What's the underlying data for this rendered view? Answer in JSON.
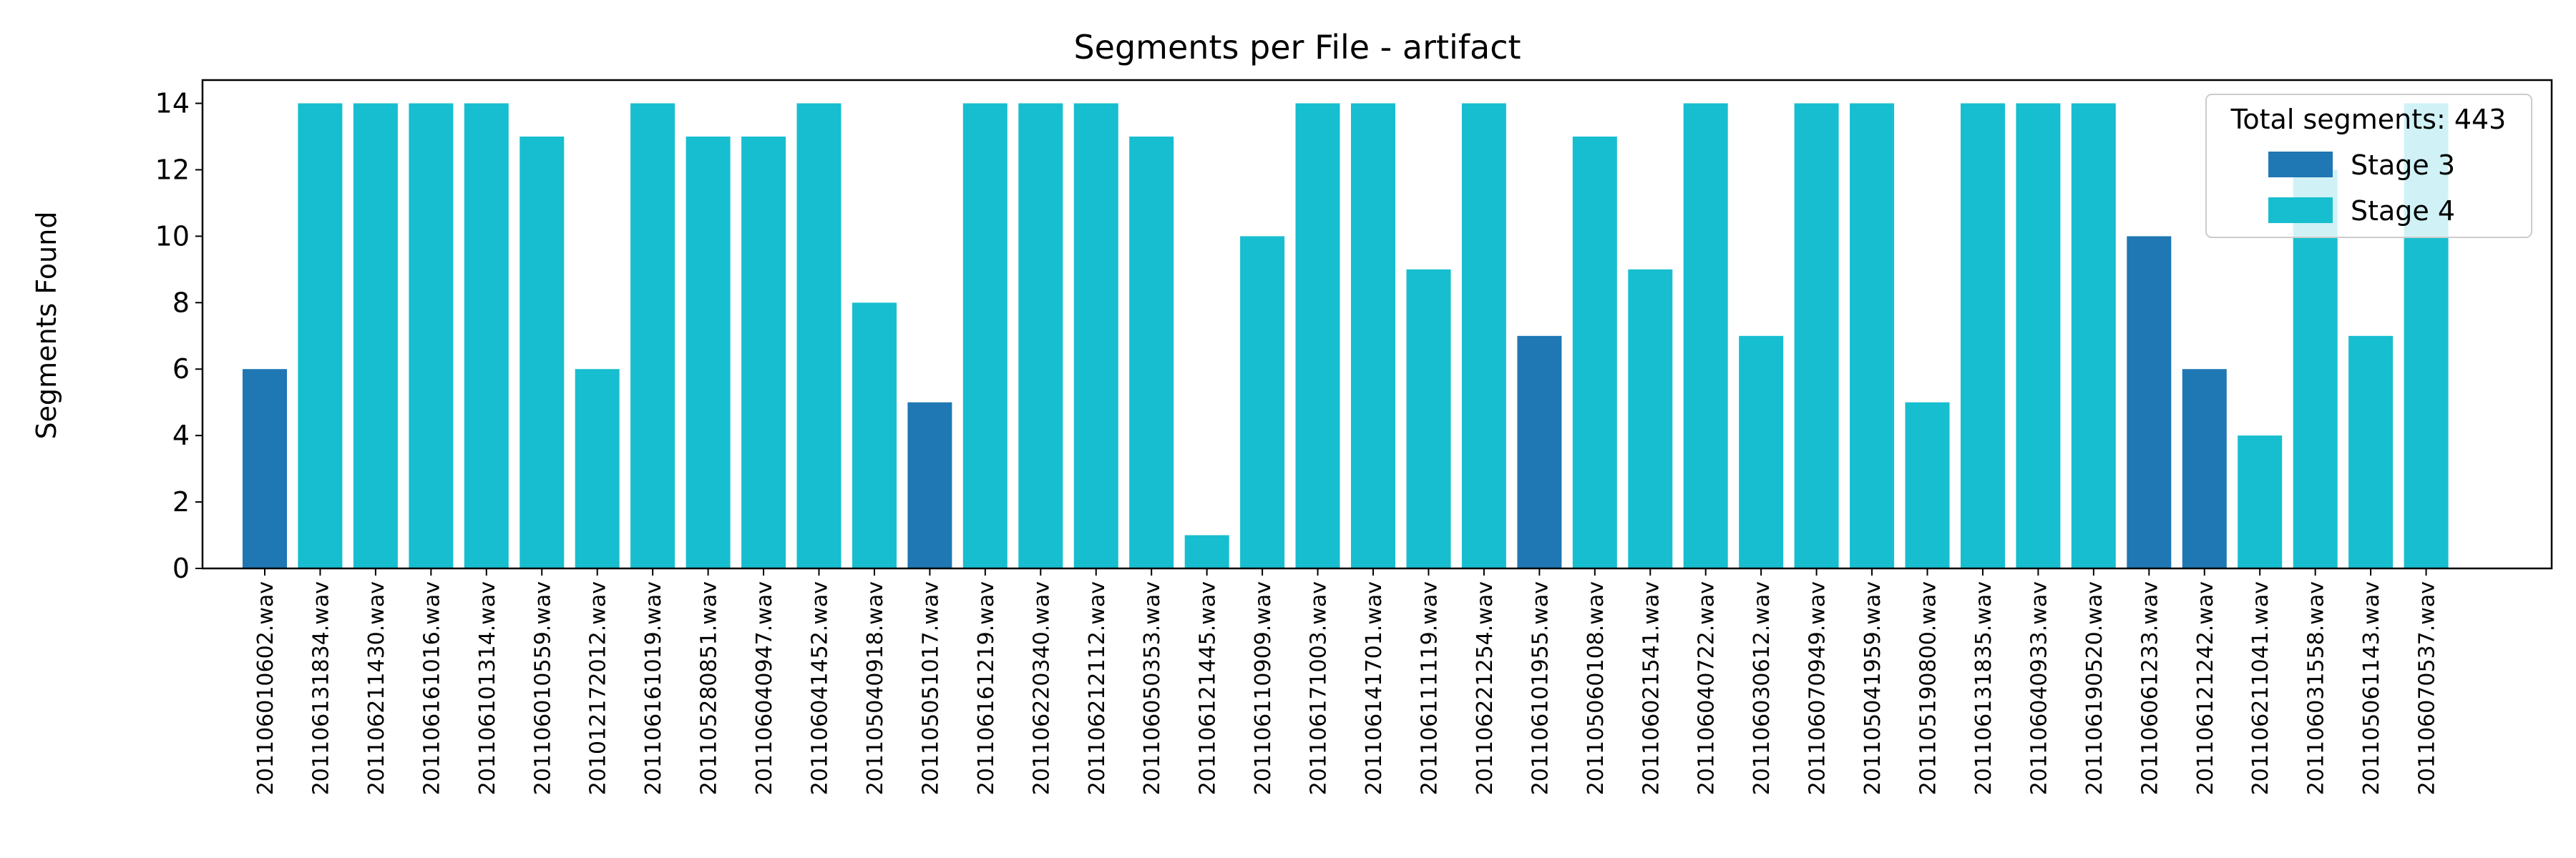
{
  "chart_data": {
    "type": "bar",
    "title": "Segments per File - artifact",
    "xlabel": "",
    "ylabel": "Segments Found",
    "ylim": [
      0,
      14.7
    ],
    "yticks": [
      0,
      2,
      4,
      6,
      8,
      10,
      12,
      14
    ],
    "grid": false,
    "legend": {
      "title": "Total segments: 443",
      "placement": "top-right",
      "entries": [
        {
          "label": "Stage 3",
          "color": "#1f77b4"
        },
        {
          "label": "Stage 4",
          "color": "#17becf"
        }
      ]
    },
    "categories": [
      "20110601060​2.wav",
      "201106131834.wav",
      "201106211430.wav",
      "201106161016.wav",
      "201106101314.wav",
      "201106010559.wav",
      "201012172012.wav",
      "201106161019.wav",
      "201105280851.wav",
      "201106040947.wav",
      "201106041452.wav",
      "201105040918.wav",
      "201105051017.wav",
      "201106161219.wav",
      "201106220340.wav",
      "201106212112.wav",
      "201106050353.wav",
      "201106121445.wav",
      "201106110909.wav",
      "201106171003.wav",
      "201106141701.wav",
      "201106111119.wav",
      "201106221254.wav",
      "201106101955.wav",
      "201105060108.wav",
      "201106021541.wav",
      "201106040722.wav",
      "201106030612.wav",
      "201106070949.wav",
      "201105041959.wav",
      "201105190800.wav",
      "201106131835.wav",
      "201106040933.wav",
      "201106190520.wav",
      "201106061233.wav",
      "201106121242.wav",
      "201106211041.wav",
      "201106031558.wav",
      "201105061143.wav",
      "201106070537.wav"
    ],
    "values": [
      6,
      14,
      14,
      14,
      14,
      13,
      6,
      14,
      13,
      13,
      14,
      8,
      5,
      14,
      14,
      14,
      13,
      1,
      10,
      14,
      14,
      9,
      14,
      7,
      13,
      9,
      14,
      7,
      14,
      14,
      5,
      14,
      14,
      14,
      10,
      6,
      4,
      12,
      7,
      14
    ],
    "stages": [
      3,
      4,
      4,
      4,
      4,
      4,
      4,
      4,
      4,
      4,
      4,
      4,
      3,
      4,
      4,
      4,
      4,
      4,
      4,
      4,
      4,
      4,
      4,
      3,
      4,
      4,
      4,
      4,
      4,
      4,
      4,
      4,
      4,
      4,
      3,
      3,
      4,
      4,
      4,
      4
    ]
  }
}
